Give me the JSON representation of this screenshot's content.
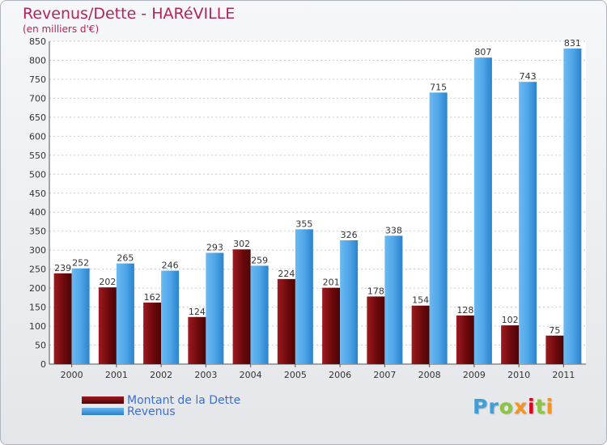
{
  "header": {
    "title": "Revenus/Dette - HARéVILLE",
    "subtitle": "(en milliers d'€)"
  },
  "legend": {
    "items": [
      {
        "label": "Montant de la Dette",
        "color": "#7a0b0e"
      },
      {
        "label": "Revenus",
        "color": "#3f9fe5"
      }
    ]
  },
  "logo": {
    "text": "Proxiti"
  },
  "chart_data": {
    "type": "bar",
    "title": "Revenus/Dette - HARéVILLE",
    "subtitle": "(en milliers d'€)",
    "xlabel": "",
    "ylabel": "",
    "ylim": [
      0,
      850
    ],
    "ytick_step": 50,
    "grid": true,
    "legend_position": "bottom-left",
    "categories": [
      "2000",
      "2001",
      "2002",
      "2003",
      "2004",
      "2005",
      "2006",
      "2007",
      "2008",
      "2009",
      "2010",
      "2011"
    ],
    "series": [
      {
        "name": "Montant de la Dette",
        "color": "#7a0b0e",
        "values": [
          239,
          202,
          162,
          124,
          302,
          224,
          201,
          178,
          154,
          128,
          102,
          75
        ]
      },
      {
        "name": "Revenus",
        "color": "#3f9fe5",
        "values": [
          252,
          265,
          246,
          293,
          259,
          355,
          326,
          338,
          715,
          807,
          743,
          831
        ]
      }
    ]
  }
}
